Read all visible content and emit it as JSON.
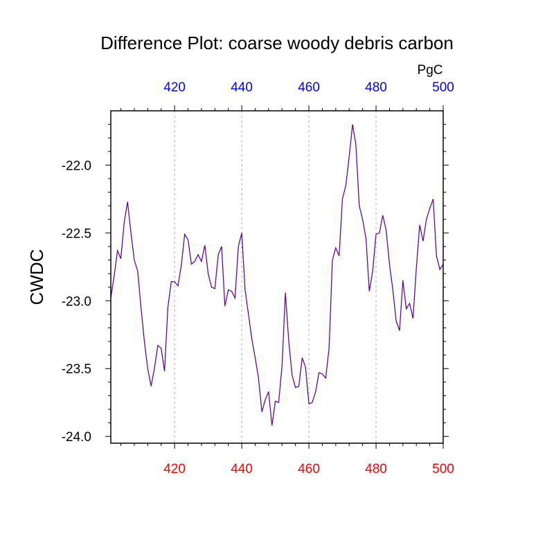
{
  "chart_data": {
    "type": "line",
    "title": "Difference Plot: coarse woody debris carbon",
    "units": "PgC",
    "ylabel": "CWDC",
    "xlabel": "",
    "xlim": [
      401,
      500
    ],
    "ylim": [
      -24.05,
      -21.6
    ],
    "x_ticks": [
      420,
      440,
      460,
      480,
      500
    ],
    "y_ticks": [
      -22.0,
      -22.5,
      -23.0,
      -23.5,
      -24.0
    ],
    "y_tick_labels": [
      "-22.0",
      "-22.5",
      "-23.0",
      "-23.5",
      "-24.0"
    ],
    "x_ticks_top_color": "#0000ff",
    "x_ticks_bottom_color": "#ff0000",
    "grid": "vertical dashed at major x ticks",
    "series": [
      {
        "line_color": "#0000ff",
        "dash_color": "#ff0000",
        "line_style": "dashed",
        "x": [
          401,
          402,
          403,
          404,
          405,
          406,
          407,
          408,
          409,
          410,
          411,
          412,
          413,
          414,
          415,
          416,
          417,
          418,
          419,
          420,
          421,
          422,
          423,
          424,
          425,
          426,
          427,
          428,
          429,
          430,
          431,
          432,
          433,
          434,
          435,
          436,
          437,
          438,
          439,
          440,
          441,
          442,
          443,
          444,
          445,
          446,
          447,
          448,
          449,
          450,
          451,
          452,
          453,
          454,
          455,
          456,
          457,
          458,
          459,
          460,
          461,
          462,
          463,
          464,
          465,
          466,
          467,
          468,
          469,
          470,
          471,
          472,
          473,
          474,
          475,
          476,
          477,
          478,
          479,
          480,
          481,
          482,
          483,
          484,
          485,
          486,
          487,
          488,
          489,
          490,
          491,
          492,
          493,
          494,
          495,
          496,
          497,
          498,
          499,
          500
        ],
        "y": [
          -22.98,
          -22.82,
          -22.63,
          -22.69,
          -22.42,
          -22.27,
          -22.5,
          -22.7,
          -22.78,
          -23.05,
          -23.3,
          -23.5,
          -23.63,
          -23.5,
          -23.33,
          -23.35,
          -23.52,
          -23.05,
          -22.86,
          -22.86,
          -22.89,
          -22.74,
          -22.51,
          -22.55,
          -22.73,
          -22.71,
          -22.66,
          -22.71,
          -22.59,
          -22.8,
          -22.9,
          -22.91,
          -22.66,
          -22.6,
          -23.04,
          -22.92,
          -22.93,
          -22.98,
          -22.6,
          -22.5,
          -22.92,
          -23.1,
          -23.28,
          -23.42,
          -23.57,
          -23.82,
          -23.73,
          -23.67,
          -23.92,
          -23.74,
          -23.75,
          -23.48,
          -22.94,
          -23.3,
          -23.55,
          -23.64,
          -23.63,
          -23.42,
          -23.49,
          -23.76,
          -23.75,
          -23.67,
          -23.53,
          -23.54,
          -23.57,
          -23.35,
          -22.7,
          -22.61,
          -22.67,
          -22.25,
          -22.15,
          -21.94,
          -21.7,
          -21.85,
          -22.3,
          -22.4,
          -22.54,
          -22.93,
          -22.78,
          -22.51,
          -22.5,
          -22.37,
          -22.48,
          -22.73,
          -22.92,
          -23.15,
          -23.22,
          -22.85,
          -23.06,
          -23.02,
          -23.13,
          -22.76,
          -22.44,
          -22.56,
          -22.4,
          -22.32,
          -22.25,
          -22.67,
          -22.77,
          -22.73
        ]
      }
    ]
  }
}
